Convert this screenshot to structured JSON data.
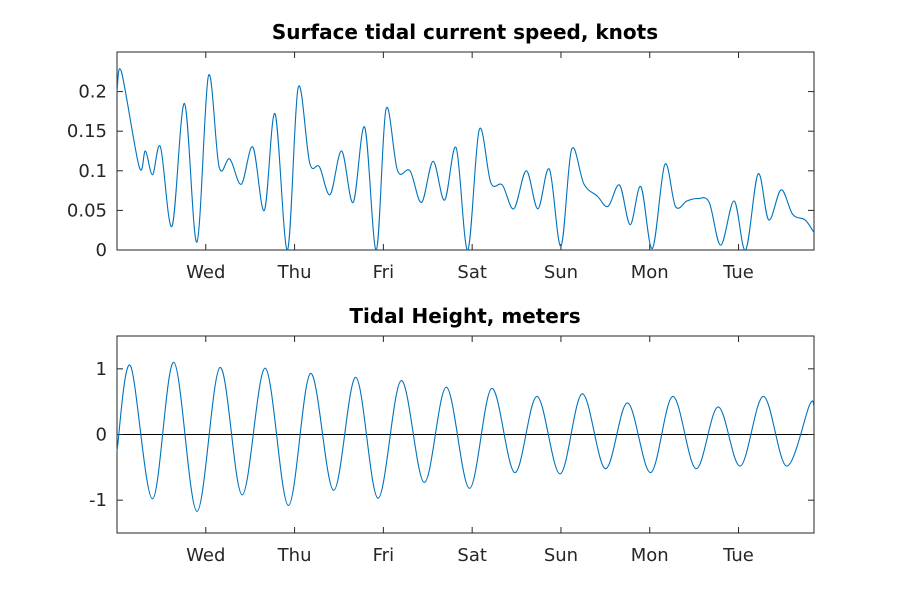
{
  "colors": {
    "series": "#0072BD",
    "axis": "#262626",
    "zero_line": "#000000"
  },
  "chart_data": [
    {
      "type": "line",
      "title": "Surface tidal current speed, knots",
      "xlabel": "",
      "ylabel": "",
      "x_axis": {
        "unit": "days",
        "xlim": [
          0,
          7.85
        ],
        "tick_positions": [
          1,
          2,
          3,
          4,
          5,
          6,
          7
        ],
        "tick_labels": [
          "Wed",
          "Thu",
          "Fri",
          "Sat",
          "Sun",
          "Mon",
          "Tue"
        ]
      },
      "ylim": [
        0,
        0.25
      ],
      "y_ticks": [
        0,
        0.05,
        0.1,
        0.15,
        0.2
      ],
      "y_tick_labels": [
        "0",
        "0.05",
        "0.1",
        "0.15",
        "0.2"
      ],
      "grid": false,
      "series": [
        {
          "x": [
            0,
            0.05,
            0.25,
            0.32,
            0.4,
            0.49,
            0.62,
            0.76,
            0.9,
            1.03,
            1.15,
            1.27,
            1.4,
            1.53,
            1.66,
            1.78,
            1.92,
            2.04,
            2.17,
            2.28,
            2.4,
            2.53,
            2.66,
            2.79,
            2.92,
            3.03,
            3.16,
            3.3,
            3.43,
            3.56,
            3.69,
            3.82,
            3.95,
            4.08,
            4.21,
            4.34,
            4.47,
            4.61,
            4.74,
            4.87,
            5.0,
            5.12,
            5.26,
            5.41,
            5.53,
            5.66,
            5.78,
            5.9,
            6.03,
            6.17,
            6.29,
            6.42,
            6.54,
            6.67,
            6.8,
            6.95,
            7.08,
            7.22,
            7.34,
            7.48,
            7.61,
            7.75,
            7.85
          ],
          "values": [
            0.2,
            0.225,
            0.105,
            0.125,
            0.095,
            0.13,
            0.03,
            0.185,
            0.01,
            0.22,
            0.105,
            0.115,
            0.083,
            0.13,
            0.05,
            0.172,
            0.0,
            0.205,
            0.11,
            0.105,
            0.07,
            0.125,
            0.06,
            0.155,
            0.0,
            0.178,
            0.1,
            0.1,
            0.06,
            0.112,
            0.063,
            0.129,
            0.0,
            0.152,
            0.085,
            0.082,
            0.052,
            0.1,
            0.052,
            0.102,
            0.005,
            0.127,
            0.083,
            0.068,
            0.055,
            0.082,
            0.032,
            0.08,
            0.002,
            0.108,
            0.055,
            0.062,
            0.065,
            0.06,
            0.006,
            0.062,
            0.0,
            0.096,
            0.038,
            0.076,
            0.045,
            0.038,
            0.022
          ]
        }
      ]
    },
    {
      "type": "line",
      "title": "Tidal Height, meters",
      "xlabel": "",
      "ylabel": "",
      "x_axis": {
        "unit": "days",
        "xlim": [
          0,
          7.85
        ],
        "tick_positions": [
          1,
          2,
          3,
          4,
          5,
          6,
          7
        ],
        "tick_labels": [
          "Wed",
          "Thu",
          "Fri",
          "Sat",
          "Sun",
          "Mon",
          "Tue"
        ]
      },
      "ylim": [
        -1.5,
        1.5
      ],
      "y_ticks": [
        -1,
        0,
        1
      ],
      "y_tick_labels": [
        "-1",
        "0",
        "1"
      ],
      "zero_line": true,
      "grid": false,
      "series": [
        {
          "x": [
            0,
            0.15,
            0.4,
            0.64,
            0.9,
            1.16,
            1.41,
            1.67,
            1.93,
            2.18,
            2.44,
            2.69,
            2.94,
            3.2,
            3.46,
            3.71,
            3.97,
            4.22,
            4.48,
            4.73,
            4.99,
            5.24,
            5.5,
            5.75,
            6.01,
            6.26,
            6.52,
            6.77,
            7.02,
            7.28,
            7.54,
            7.8,
            7.85
          ],
          "values": [
            -0.25,
            1.05,
            -0.98,
            1.1,
            -1.17,
            1.02,
            -0.92,
            1.01,
            -1.08,
            0.93,
            -0.85,
            0.87,
            -0.97,
            0.82,
            -0.73,
            0.72,
            -0.82,
            0.7,
            -0.58,
            0.58,
            -0.6,
            0.62,
            -0.52,
            0.48,
            -0.58,
            0.58,
            -0.52,
            0.42,
            -0.48,
            0.58,
            -0.48,
            0.45,
            0.42
          ]
        }
      ]
    }
  ]
}
